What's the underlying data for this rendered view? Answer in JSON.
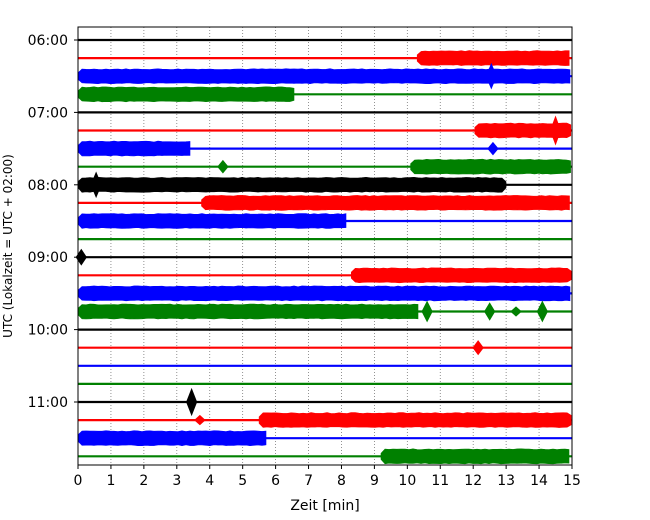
{
  "chart_data": {
    "type": "line",
    "xlabel": "Zeit  [min]",
    "ylabel": "UTC (Lokalzeit = UTC + 02:00)",
    "xlim": [
      0,
      15
    ],
    "x_ticks": [
      0,
      1,
      2,
      3,
      4,
      5,
      6,
      7,
      8,
      9,
      10,
      11,
      12,
      13,
      14,
      15
    ],
    "grid": "vertical dotted",
    "row_interval_min": 15,
    "time_ticks": [
      {
        "label": "06:00",
        "row": 0
      },
      {
        "label": "07:00",
        "row": 4
      },
      {
        "label": "08:00",
        "row": 8
      },
      {
        "label": "09:00",
        "row": 12
      },
      {
        "label": "10:00",
        "row": 16
      },
      {
        "label": "11:00",
        "row": 20
      }
    ],
    "colors": {
      "black": "#000000",
      "red": "#ff0000",
      "blue": "#0000ff",
      "green": "#008000"
    },
    "rows": [
      {
        "start": "06:00",
        "color": "black",
        "segments": []
      },
      {
        "start": "06:15",
        "color": "red",
        "segments": [
          [
            10.3,
            15,
            1
          ]
        ]
      },
      {
        "start": "06:30",
        "color": "blue",
        "segments": [
          [
            0,
            15,
            1
          ]
        ],
        "spikes": [
          [
            12.55,
            1.6
          ]
        ]
      },
      {
        "start": "06:45",
        "color": "green",
        "segments": [
          [
            0,
            6.6,
            1
          ]
        ]
      },
      {
        "start": "07:00",
        "color": "black",
        "segments": []
      },
      {
        "start": "07:15",
        "color": "red",
        "segments": [
          [
            12.05,
            15,
            1
          ]
        ],
        "spikes": [
          [
            14.5,
            1.8
          ]
        ]
      },
      {
        "start": "07:30",
        "color": "blue",
        "segments": [
          [
            0,
            3.5,
            1
          ]
        ],
        "spikes": [
          [
            12.6,
            0.8
          ]
        ]
      },
      {
        "start": "07:45",
        "color": "green",
        "segments": [
          [
            10.1,
            15,
            1
          ]
        ],
        "spikes": [
          [
            4.4,
            0.8
          ]
        ]
      },
      {
        "start": "08:00",
        "color": "black",
        "segments": [
          [
            0,
            13.0,
            1
          ]
        ],
        "spikes": [
          [
            0.55,
            1.6
          ]
        ]
      },
      {
        "start": "08:15",
        "color": "red",
        "segments": [
          [
            3.75,
            15,
            1
          ]
        ]
      },
      {
        "start": "08:30",
        "color": "blue",
        "segments": [
          [
            0,
            8.2,
            1
          ]
        ]
      },
      {
        "start": "08:45",
        "color": "green",
        "segments": []
      },
      {
        "start": "09:00",
        "color": "black",
        "segments": [],
        "spikes": [
          [
            0.1,
            1.0
          ]
        ]
      },
      {
        "start": "09:15",
        "color": "red",
        "segments": [
          [
            8.3,
            15,
            1
          ]
        ]
      },
      {
        "start": "09:30",
        "color": "blue",
        "segments": [
          [
            0,
            15,
            1
          ]
        ]
      },
      {
        "start": "09:45",
        "color": "green",
        "segments": [
          [
            0,
            10.4,
            1
          ]
        ],
        "spikes": [
          [
            10.6,
            1.3
          ],
          [
            12.5,
            1.1
          ],
          [
            13.3,
            0.6
          ],
          [
            14.1,
            1.3
          ]
        ]
      },
      {
        "start": "10:00",
        "color": "black",
        "segments": []
      },
      {
        "start": "10:15",
        "color": "red",
        "segments": [],
        "spikes": [
          [
            12.15,
            0.9
          ]
        ]
      },
      {
        "start": "10:30",
        "color": "blue",
        "segments": []
      },
      {
        "start": "10:45",
        "color": "green",
        "segments": []
      },
      {
        "start": "11:00",
        "color": "black",
        "segments": [],
        "spikes": [
          [
            3.45,
            1.7
          ]
        ]
      },
      {
        "start": "11:15",
        "color": "red",
        "segments": [
          [
            5.5,
            15,
            1
          ]
        ],
        "spikes": [
          [
            3.7,
            0.6
          ]
        ]
      },
      {
        "start": "11:30",
        "color": "blue",
        "segments": [
          [
            0,
            5.8,
            1
          ]
        ]
      },
      {
        "start": "11:45",
        "color": "green",
        "segments": [
          [
            9.2,
            15,
            1
          ]
        ]
      }
    ]
  }
}
